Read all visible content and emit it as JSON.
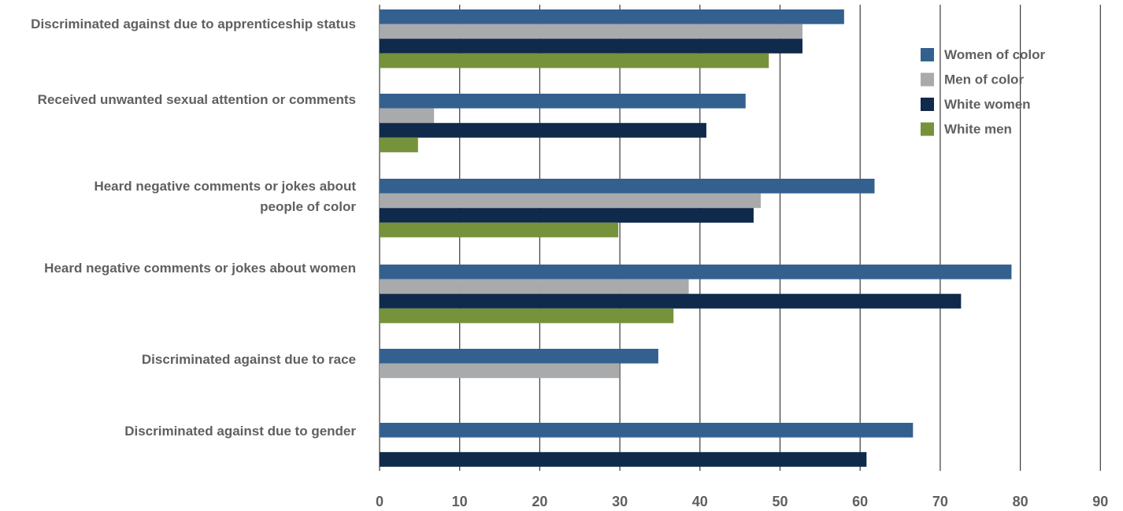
{
  "chart_data": {
    "type": "bar",
    "orientation": "horizontal",
    "categories": [
      [
        "Discriminated against due to apprenticeship status"
      ],
      [
        "Received unwanted sexual attention or comments"
      ],
      [
        "Heard negative comments or jokes about",
        "people of color"
      ],
      [
        "Heard negative comments or jokes about women"
      ],
      [
        "Discriminated against due to race"
      ],
      [
        "Discriminated against due to gender"
      ]
    ],
    "series": [
      {
        "name": "Women of color",
        "color": "#34608f",
        "values": [
          58,
          45.7,
          61.8,
          78.9,
          34.8,
          66.6
        ]
      },
      {
        "name": "Men of color",
        "color": "#a9aaac",
        "values": [
          52.8,
          6.8,
          47.6,
          38.6,
          29.9,
          null
        ]
      },
      {
        "name": "White women",
        "color": "#0f2a4a",
        "values": [
          52.8,
          40.8,
          46.7,
          72.6,
          null,
          60.8
        ]
      },
      {
        "name": "White men",
        "color": "#76923b",
        "values": [
          48.6,
          4.8,
          29.8,
          36.7,
          null,
          null
        ]
      }
    ],
    "xlim": [
      0,
      90
    ],
    "xticks": [
      "0",
      "10",
      "20",
      "30",
      "40",
      "50",
      "60",
      "70",
      "80",
      "90"
    ],
    "grid": true,
    "legend": "top-right"
  }
}
